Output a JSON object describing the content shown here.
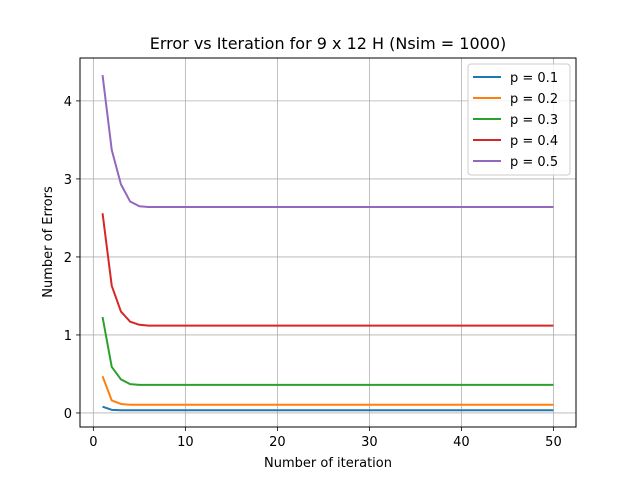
{
  "chart_data": {
    "type": "line",
    "title": "Error vs Iteration for 9 x 12 H (Nsim = 1000)",
    "xlabel": "Number of iteration",
    "ylabel": "Number of Errors",
    "xlim": [
      -1.45,
      52.45
    ],
    "ylim": [
      -0.18,
      4.55
    ],
    "xticks": [
      0,
      10,
      20,
      30,
      40,
      50
    ],
    "yticks": [
      0,
      1,
      2,
      3,
      4
    ],
    "grid": true,
    "legend_position": "top-right",
    "x": [
      1,
      2,
      3,
      4,
      5,
      6,
      7,
      8,
      9,
      10,
      11,
      12,
      13,
      14,
      15,
      16,
      17,
      18,
      19,
      20,
      21,
      22,
      23,
      24,
      25,
      26,
      27,
      28,
      29,
      30,
      31,
      32,
      33,
      34,
      35,
      36,
      37,
      38,
      39,
      40,
      41,
      42,
      43,
      44,
      45,
      46,
      47,
      48,
      49,
      50
    ],
    "series": [
      {
        "name": "p = 0.1",
        "color": "#1f77b4",
        "head": [
          0.08,
          0.04,
          0.035
        ],
        "tail": 0.035
      },
      {
        "name": "p = 0.2",
        "color": "#ff7f0e",
        "head": [
          0.47,
          0.16,
          0.115,
          0.105
        ],
        "tail": 0.105
      },
      {
        "name": "p = 0.3",
        "color": "#2ca02c",
        "head": [
          1.23,
          0.59,
          0.43,
          0.37,
          0.36
        ],
        "tail": 0.36
      },
      {
        "name": "p = 0.4",
        "color": "#d62728",
        "head": [
          2.56,
          1.63,
          1.3,
          1.17,
          1.13,
          1.12
        ],
        "tail": 1.12
      },
      {
        "name": "p = 0.5",
        "color": "#9467bd",
        "head": [
          4.33,
          3.37,
          2.93,
          2.71,
          2.65,
          2.64
        ],
        "tail": 2.64
      }
    ]
  }
}
